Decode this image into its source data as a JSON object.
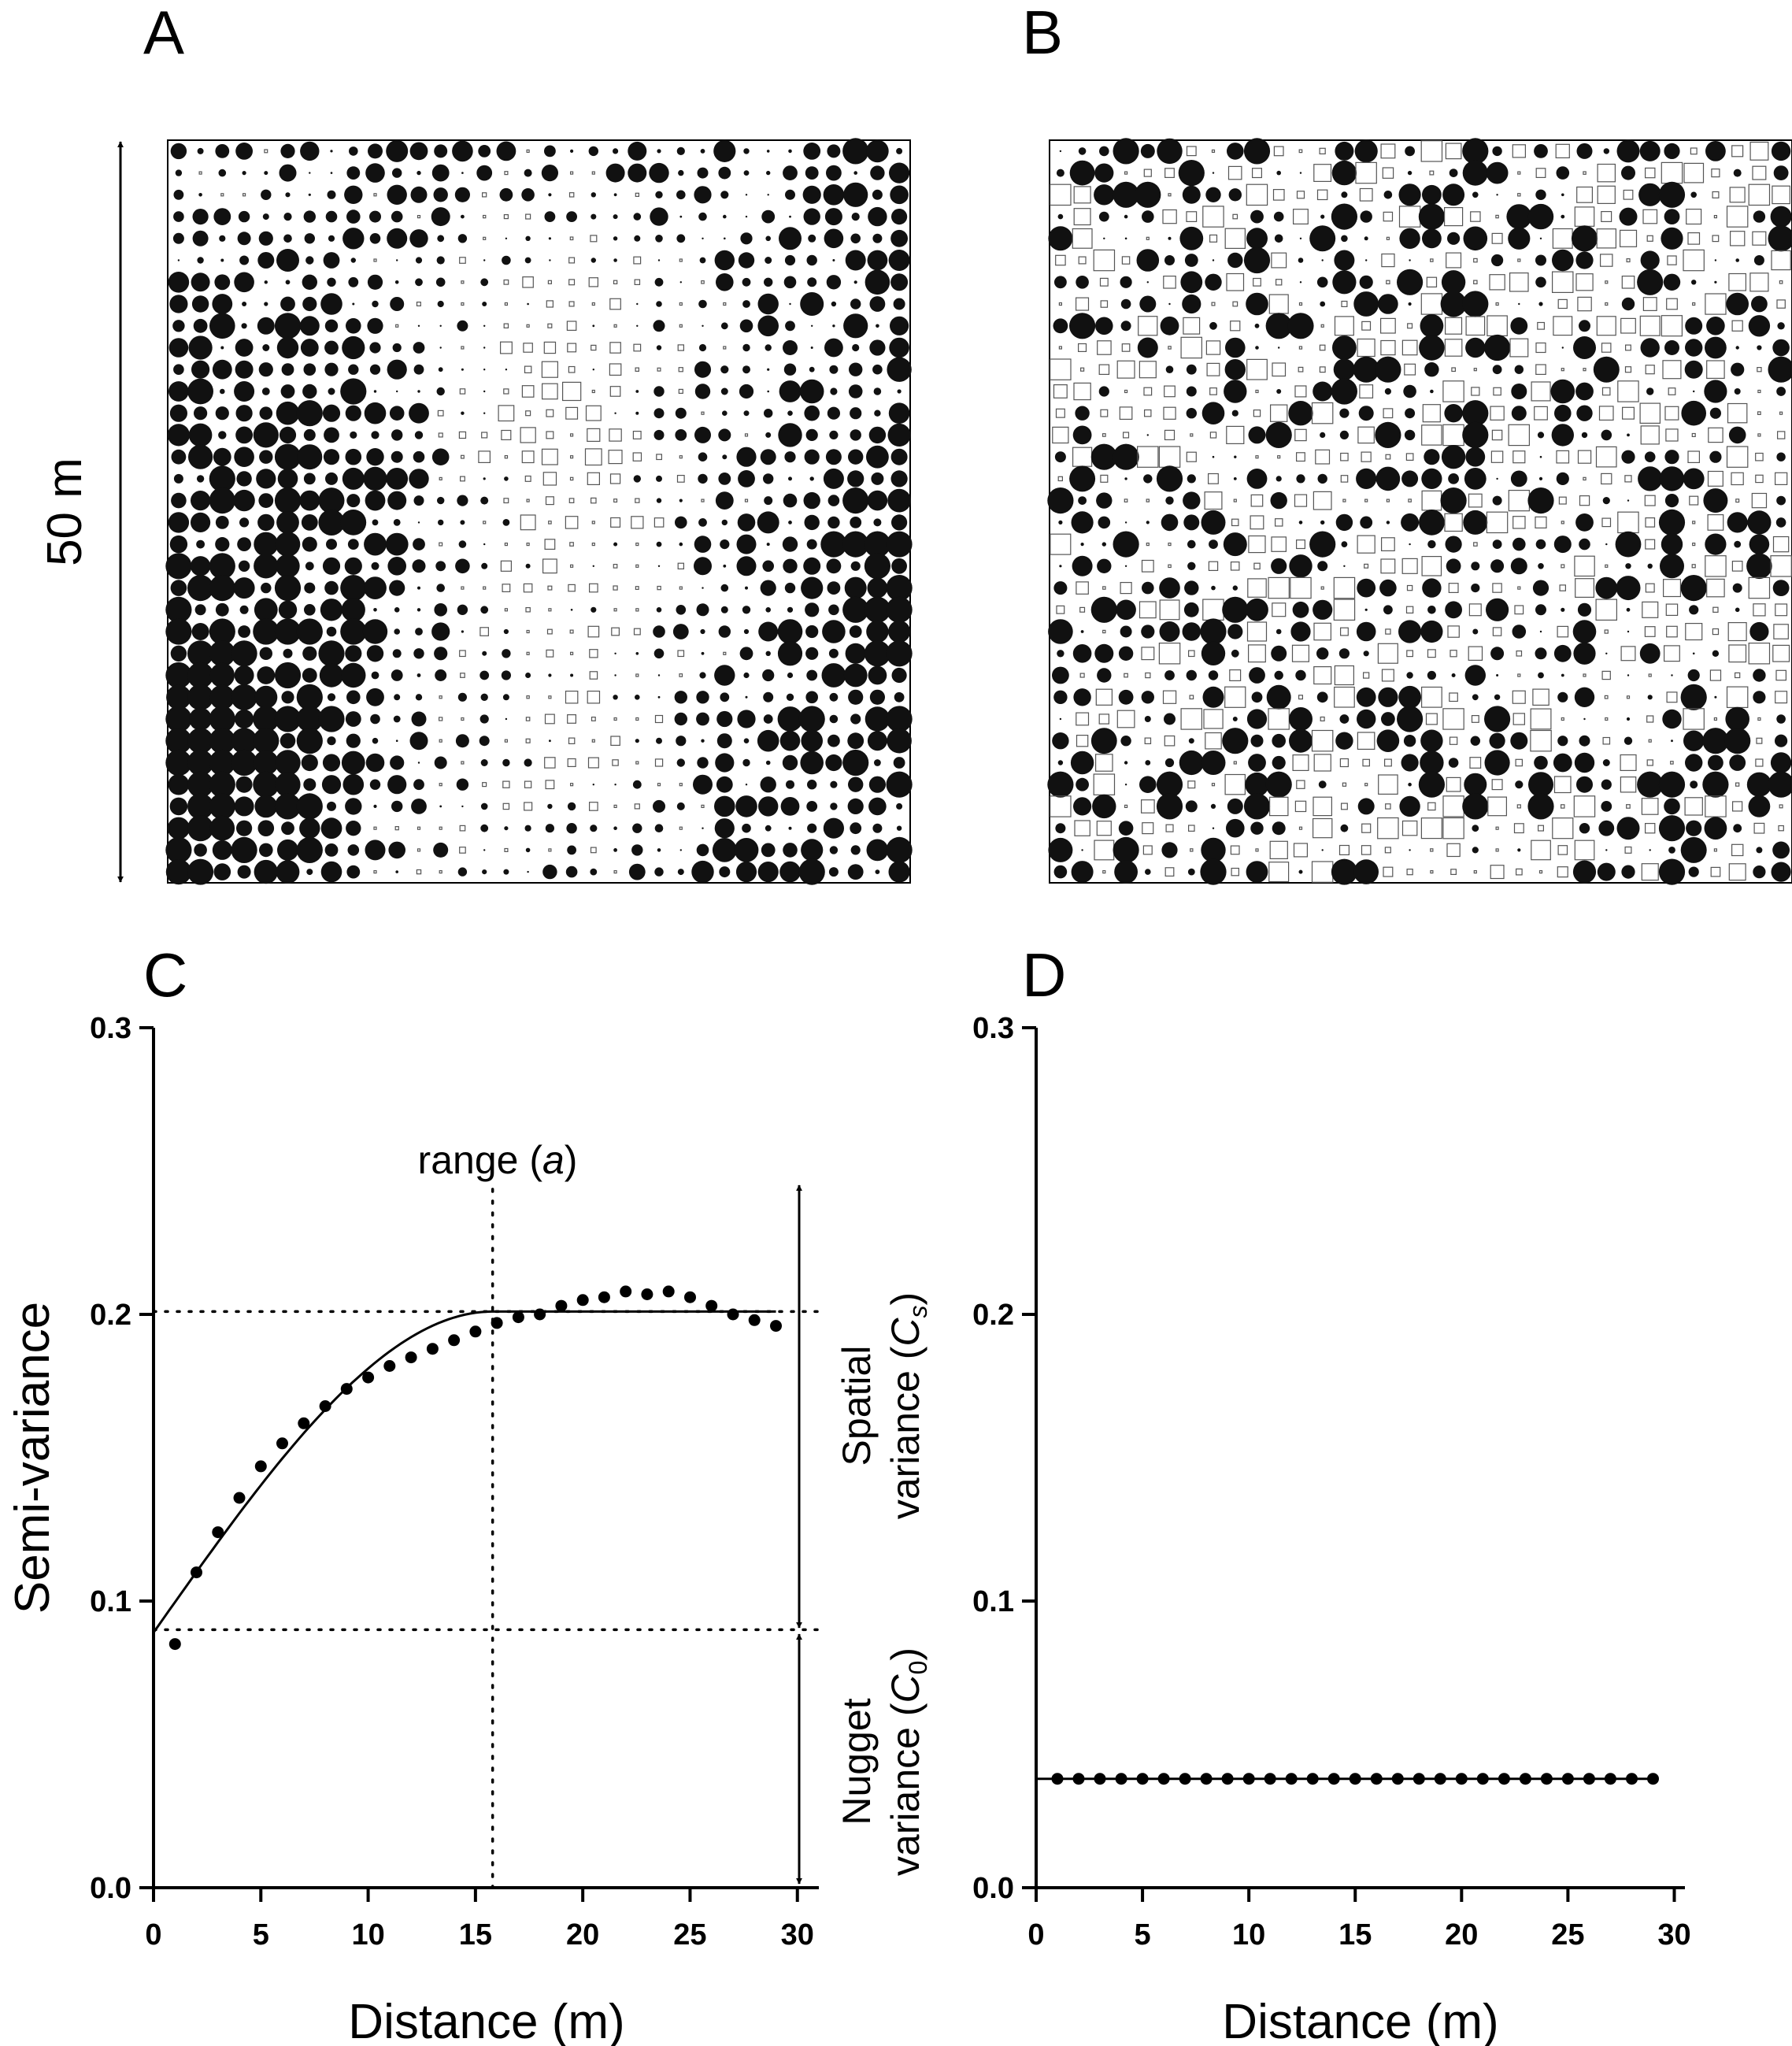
{
  "panels": {
    "a": {
      "letter": "A",
      "scale_label": "50 m"
    },
    "b": {
      "letter": "B"
    },
    "c": {
      "letter": "C"
    },
    "d": {
      "letter": "D"
    }
  },
  "annotations": {
    "range": "range (a)",
    "spatial": "Spatial variance (Cs)",
    "nugget": "Nugget variance (C0)"
  },
  "chart_data": [
    {
      "type": "scatter",
      "panel": "C",
      "title": "",
      "xlabel": "Distance (m)",
      "ylabel": "Semi-variance",
      "xlim": [
        0,
        31
      ],
      "ylim": [
        0,
        0.3
      ],
      "xticks": [
        0,
        5,
        10,
        15,
        20,
        25,
        30
      ],
      "yticks": [
        "0.0",
        "0.1",
        "0.2",
        "0.3"
      ],
      "points": [
        {
          "x": 1,
          "y": 0.085
        },
        {
          "x": 2,
          "y": 0.11
        },
        {
          "x": 3,
          "y": 0.124
        },
        {
          "x": 4,
          "y": 0.136
        },
        {
          "x": 5,
          "y": 0.147
        },
        {
          "x": 6,
          "y": 0.155
        },
        {
          "x": 7,
          "y": 0.162
        },
        {
          "x": 8,
          "y": 0.168
        },
        {
          "x": 9,
          "y": 0.174
        },
        {
          "x": 10,
          "y": 0.178
        },
        {
          "x": 11,
          "y": 0.182
        },
        {
          "x": 12,
          "y": 0.185
        },
        {
          "x": 13,
          "y": 0.188
        },
        {
          "x": 14,
          "y": 0.191
        },
        {
          "x": 15,
          "y": 0.194
        },
        {
          "x": 16,
          "y": 0.197
        },
        {
          "x": 17,
          "y": 0.199
        },
        {
          "x": 18,
          "y": 0.2
        },
        {
          "x": 19,
          "y": 0.203
        },
        {
          "x": 20,
          "y": 0.205
        },
        {
          "x": 21,
          "y": 0.206
        },
        {
          "x": 22,
          "y": 0.208
        },
        {
          "x": 23,
          "y": 0.207
        },
        {
          "x": 24,
          "y": 0.208
        },
        {
          "x": 25,
          "y": 0.206
        },
        {
          "x": 26,
          "y": 0.203
        },
        {
          "x": 27,
          "y": 0.2
        },
        {
          "x": 28,
          "y": 0.198
        },
        {
          "x": 29,
          "y": 0.196
        }
      ],
      "model": {
        "type": "spherical",
        "nugget": 0.089,
        "sill": 0.201,
        "range": 15.8,
        "x_end": 29
      },
      "reference_lines": {
        "sill_y": 0.201,
        "nugget_y": 0.09,
        "range_x": 15.8
      }
    },
    {
      "type": "scatter",
      "panel": "D",
      "title": "",
      "xlabel": "Distance (m)",
      "ylabel": "",
      "xlim": [
        0,
        30.5
      ],
      "ylim": [
        0,
        0.3
      ],
      "xticks": [
        0,
        5,
        10,
        15,
        20,
        25,
        30
      ],
      "yticks": [
        "0.0",
        "0.1",
        "0.2",
        "0.3"
      ],
      "points": [
        {
          "x": 1,
          "y": 0.038
        },
        {
          "x": 2,
          "y": 0.038
        },
        {
          "x": 3,
          "y": 0.038
        },
        {
          "x": 4,
          "y": 0.038
        },
        {
          "x": 5,
          "y": 0.038
        },
        {
          "x": 6,
          "y": 0.038
        },
        {
          "x": 7,
          "y": 0.038
        },
        {
          "x": 8,
          "y": 0.038
        },
        {
          "x": 9,
          "y": 0.038
        },
        {
          "x": 10,
          "y": 0.038
        },
        {
          "x": 11,
          "y": 0.038
        },
        {
          "x": 12,
          "y": 0.038
        },
        {
          "x": 13,
          "y": 0.038
        },
        {
          "x": 14,
          "y": 0.038
        },
        {
          "x": 15,
          "y": 0.038
        },
        {
          "x": 16,
          "y": 0.038
        },
        {
          "x": 17,
          "y": 0.038
        },
        {
          "x": 18,
          "y": 0.038
        },
        {
          "x": 19,
          "y": 0.038
        },
        {
          "x": 20,
          "y": 0.038
        },
        {
          "x": 21,
          "y": 0.038
        },
        {
          "x": 22,
          "y": 0.038
        },
        {
          "x": 23,
          "y": 0.038
        },
        {
          "x": 24,
          "y": 0.038
        },
        {
          "x": 25,
          "y": 0.038
        },
        {
          "x": 26,
          "y": 0.038
        },
        {
          "x": 27,
          "y": 0.038
        },
        {
          "x": 28,
          "y": 0.038
        },
        {
          "x": 29,
          "y": 0.038
        }
      ],
      "model": {
        "type": "flat",
        "y": 0.038,
        "x_start": 0,
        "x_end": 29
      }
    }
  ]
}
